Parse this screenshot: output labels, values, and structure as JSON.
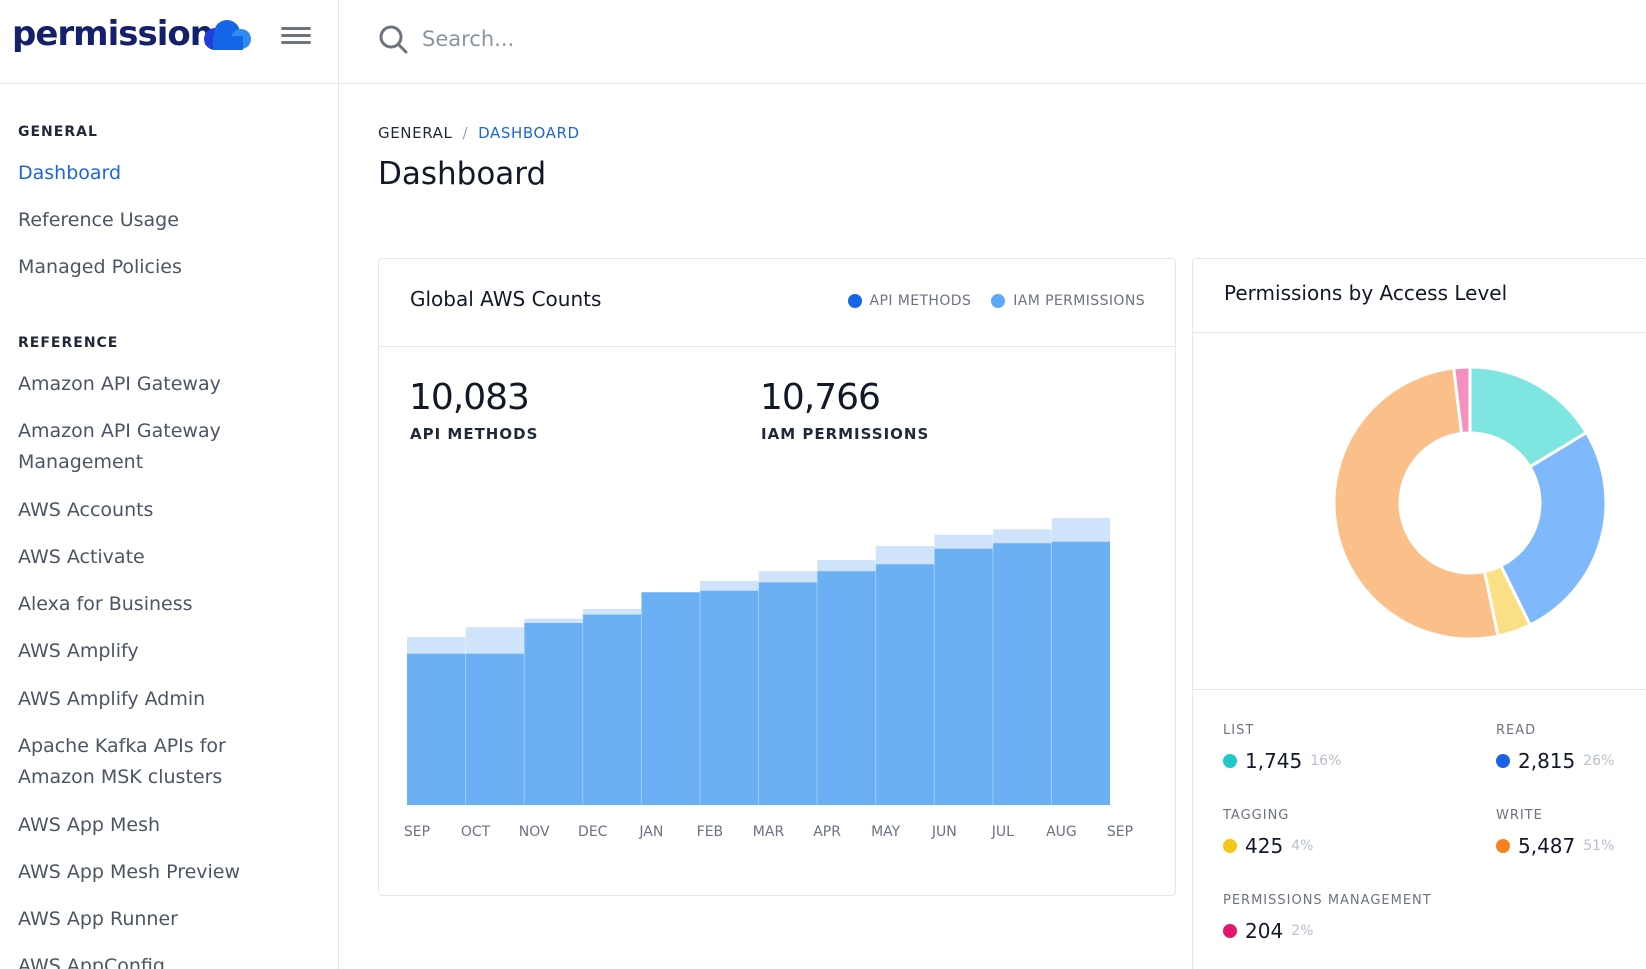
{
  "brand": {
    "name": "permissions"
  },
  "search": {
    "placeholder": "Search..."
  },
  "sidebar": {
    "sections": [
      {
        "title": "GENERAL",
        "items": [
          {
            "label": "Dashboard",
            "active": true
          },
          {
            "label": "Reference Usage"
          },
          {
            "label": "Managed Policies"
          }
        ]
      },
      {
        "title": "REFERENCE",
        "items": [
          {
            "label": "Amazon API Gateway"
          },
          {
            "label": "Amazon API Gateway Management"
          },
          {
            "label": "AWS Accounts"
          },
          {
            "label": "AWS Activate"
          },
          {
            "label": "Alexa for Business"
          },
          {
            "label": "AWS Amplify"
          },
          {
            "label": "AWS Amplify Admin"
          },
          {
            "label": "Apache Kafka APIs for Amazon MSK clusters"
          },
          {
            "label": "AWS App Mesh"
          },
          {
            "label": "AWS App Mesh Preview"
          },
          {
            "label": "AWS App Runner"
          },
          {
            "label": "AWS AppConfig"
          }
        ]
      }
    ]
  },
  "breadcrumb": {
    "parent": "GENERAL",
    "separator": "/",
    "current": "DASHBOARD"
  },
  "page": {
    "title": "Dashboard"
  },
  "colors": {
    "accent": "#1d66d9",
    "api_methods": "#1565e8",
    "iam_permissions": "#5ea9f5",
    "list": "#1fc9c9",
    "read": "#1a63e6",
    "tagging": "#f5c518",
    "write": "#f58220",
    "permissions_management": "#e3166e"
  },
  "counts_card": {
    "title": "Global AWS Counts",
    "legend": [
      "API METHODS",
      "IAM PERMISSIONS"
    ],
    "api_methods": {
      "value": "10,083",
      "label": "API METHODS"
    },
    "iam_permissions": {
      "value": "10,766",
      "label": "IAM PERMISSIONS"
    }
  },
  "access_card": {
    "title": "Permissions by Access Level",
    "levels": [
      {
        "label": "LIST",
        "count": "1,745",
        "pct": "16%"
      },
      {
        "label": "READ",
        "count": "2,815",
        "pct": "26%"
      },
      {
        "label": "TAGGING",
        "count": "425",
        "pct": "4%"
      },
      {
        "label": "WRITE",
        "count": "5,487",
        "pct": "51%"
      },
      {
        "label": "PERMISSIONS MANAGEMENT",
        "count": "204",
        "pct": "2%"
      }
    ]
  },
  "chart_data": [
    {
      "type": "area",
      "title": "Global AWS Counts",
      "categories": [
        "SEP",
        "OCT",
        "NOV",
        "DEC",
        "JAN",
        "FEB",
        "MAR",
        "APR",
        "MAY",
        "JUN",
        "JUL",
        "AUG",
        "SEP"
      ],
      "legend_position": "top-right",
      "grid": true,
      "series": [
        {
          "name": "IAM PERMISSIONS",
          "values": [
            6000,
            6350,
            6650,
            7000,
            7550,
            8000,
            8350,
            8750,
            9250,
            9650,
            9850,
            10250,
            10766
          ]
        },
        {
          "name": "API METHODS",
          "values": [
            5400,
            5400,
            6500,
            6800,
            7600,
            7650,
            7950,
            8350,
            8600,
            9150,
            9350,
            9400,
            10083
          ]
        }
      ]
    },
    {
      "type": "pie",
      "title": "Permissions by Access Level",
      "categories": [
        "LIST",
        "READ",
        "TAGGING",
        "WRITE",
        "PERMISSIONS MANAGEMENT"
      ],
      "values": [
        1745,
        2815,
        425,
        5487,
        204
      ]
    }
  ]
}
